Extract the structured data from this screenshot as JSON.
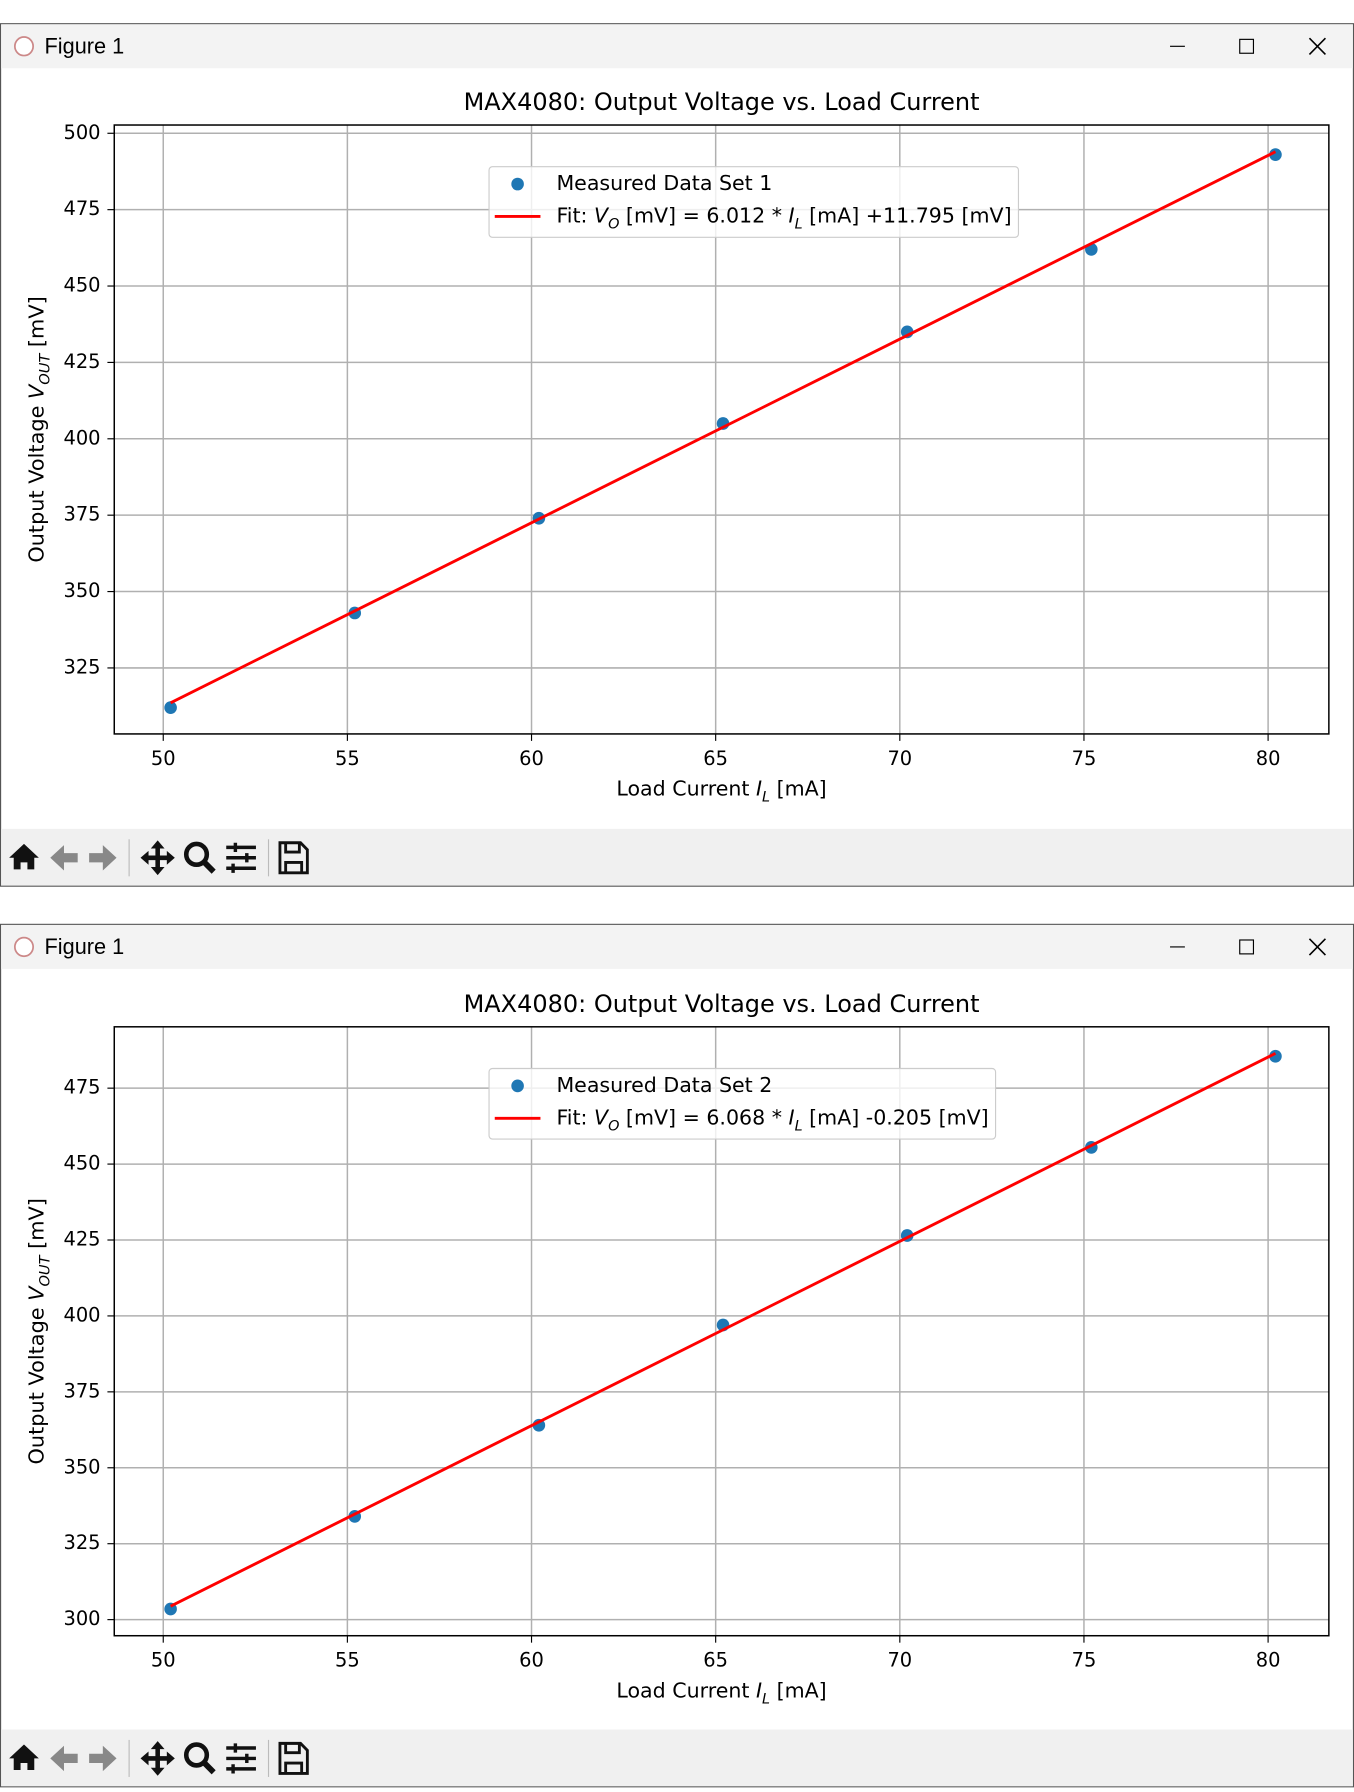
{
  "windows": [
    {
      "title": "Figure 1"
    },
    {
      "title": "Figure 1"
    }
  ],
  "chart_data": [
    {
      "type": "scatter",
      "title": "MAX4080: Output Voltage vs. Load Current",
      "xlabel": [
        "Load Current ",
        "I",
        "L",
        " [mA]"
      ],
      "ylabel": [
        "Output Voltage ",
        "V",
        "OUT",
        " [mV]"
      ],
      "xlim": [
        48.67,
        81.65
      ],
      "ylim": [
        303.4,
        502.7
      ],
      "xticks": [
        50,
        55,
        60,
        65,
        70,
        75,
        80
      ],
      "yticks": [
        325,
        350,
        375,
        400,
        425,
        450,
        475,
        500
      ],
      "grid": true,
      "series": [
        {
          "name": "Measured Data Set 1",
          "type": "scatter",
          "color": "#1f77b4",
          "x": [
            50.2,
            55.2,
            60.2,
            65.2,
            70.2,
            75.2,
            80.2
          ],
          "values": [
            312,
            343,
            374,
            405,
            435,
            462,
            493
          ]
        },
        {
          "name": [
            "Fit: ",
            "V",
            "O",
            " [mV] = 6.012 * ",
            "I",
            "L",
            " [mA] +11.795 [mV]"
          ],
          "type": "line",
          "color": "#ff0000",
          "x": [
            50.2,
            80.2
          ],
          "values": [
            313.6,
            493.96
          ]
        }
      ]
    },
    {
      "type": "scatter",
      "title": "MAX4080: Output Voltage vs. Load Current",
      "xlabel": [
        "Load Current ",
        "I",
        "L",
        " [mA]"
      ],
      "ylabel": [
        "Output Voltage ",
        "V",
        "OUT",
        " [mV]"
      ],
      "xlim": [
        48.67,
        81.65
      ],
      "ylim": [
        294.7,
        495.2
      ],
      "xticks": [
        50,
        55,
        60,
        65,
        70,
        75,
        80
      ],
      "yticks": [
        300,
        325,
        350,
        375,
        400,
        425,
        450,
        475
      ],
      "grid": true,
      "series": [
        {
          "name": "Measured Data Set 2",
          "type": "scatter",
          "color": "#1f77b4",
          "x": [
            50.2,
            55.2,
            60.2,
            65.2,
            70.2,
            75.2,
            80.2
          ],
          "values": [
            303.5,
            334,
            364,
            397,
            426.5,
            455.5,
            485.5
          ]
        },
        {
          "name": [
            "Fit: ",
            "V",
            "O",
            " [mV] = 6.068 * ",
            "I",
            "L",
            " [mA] -0.205 [mV]"
          ],
          "type": "line",
          "color": "#ff0000",
          "x": [
            50.2,
            80.2
          ],
          "values": [
            304.41,
            486.45
          ]
        }
      ]
    }
  ]
}
